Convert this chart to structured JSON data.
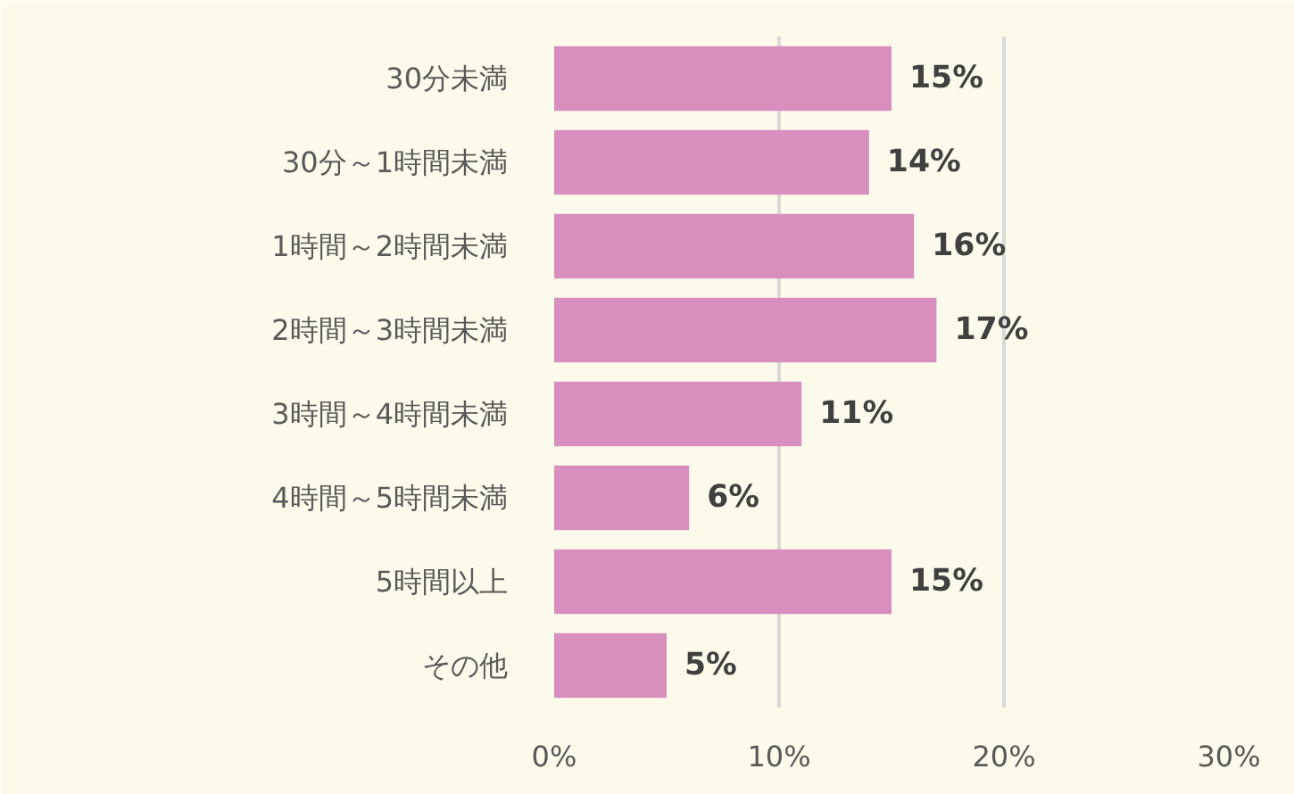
{
  "chart_data": {
    "type": "bar",
    "orientation": "horizontal",
    "categories": [
      "30分未満",
      "30分～1時間未満",
      "1時間～2時間未満",
      "2時間～3時間未満",
      "3時間～4時間未満",
      "4時間～5時間未満",
      "5時間以上",
      "その他"
    ],
    "values": [
      15,
      14,
      16,
      17,
      11,
      6,
      15,
      5
    ],
    "color": "#d98fbe",
    "xlim": [
      0,
      30
    ],
    "xticks": [
      {
        "value": 0,
        "label": "0%"
      },
      {
        "value": 10,
        "label": "10%"
      },
      {
        "value": 20,
        "label": "20%"
      },
      {
        "value": 30,
        "label": "30%"
      }
    ],
    "value_labels": [
      "15%",
      "14%",
      "16%",
      "17%",
      "11%",
      "6%",
      "15%",
      "5%"
    ],
    "grid": "x"
  }
}
